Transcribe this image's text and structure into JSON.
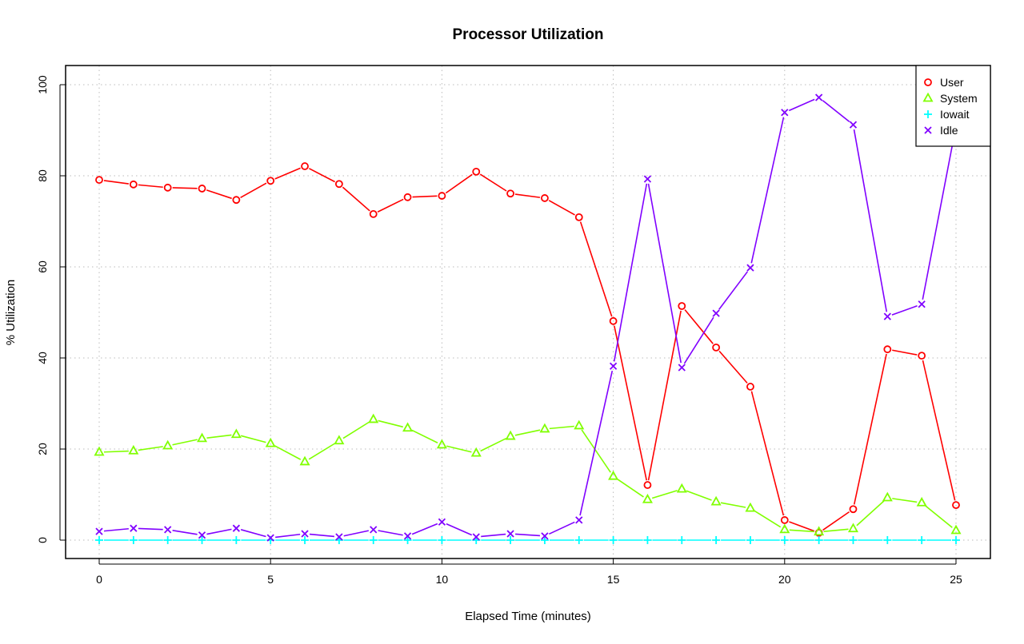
{
  "chart_data": {
    "type": "line",
    "title": "Processor Utilization",
    "xlabel": "Elapsed Time (minutes)",
    "ylabel": "% Utilization",
    "xlim": [
      -1,
      26
    ],
    "ylim": [
      -4,
      104
    ],
    "xticks": [
      "0",
      "5",
      "10",
      "15",
      "20",
      "25"
    ],
    "yticks": [
      "0",
      "20",
      "40",
      "60",
      "80",
      "100"
    ],
    "grid": true,
    "legend_position": "top-right",
    "x": [
      0,
      1,
      2,
      3,
      4,
      5,
      6,
      7,
      8,
      9,
      10,
      11,
      12,
      13,
      14,
      15,
      16,
      17,
      18,
      19,
      20,
      21,
      22,
      23,
      24,
      25
    ],
    "series": [
      {
        "name": "User",
        "color": "#FF0000",
        "marker": "circle",
        "values": [
          79.1,
          78.1,
          77.4,
          77.2,
          74.7,
          78.9,
          82.1,
          78.2,
          71.6,
          75.3,
          75.6,
          80.9,
          76.1,
          75.1,
          70.9,
          48.1,
          12.1,
          51.4,
          42.3,
          33.7,
          4.4,
          1.6,
          6.8,
          41.9,
          40.5,
          7.7
        ]
      },
      {
        "name": "System",
        "color": "#80FF00",
        "marker": "triangle",
        "values": [
          19.3,
          19.6,
          20.7,
          22.3,
          23.2,
          21.2,
          17.2,
          21.8,
          26.5,
          24.6,
          20.9,
          19.1,
          22.8,
          24.4,
          25.1,
          14.0,
          8.9,
          11.2,
          8.4,
          7.0,
          2.3,
          1.8,
          2.5,
          9.3,
          8.2,
          2.1
        ]
      },
      {
        "name": "Iowait",
        "color": "#00FFFF",
        "marker": "plus",
        "values": [
          0,
          0,
          0,
          0,
          0,
          0,
          0,
          0,
          0,
          0,
          0,
          0,
          0,
          0,
          0,
          0,
          0,
          0,
          0,
          0,
          0,
          0,
          0,
          0,
          0,
          0
        ]
      },
      {
        "name": "Idle",
        "color": "#8000FF",
        "marker": "cross",
        "values": [
          1.9,
          2.6,
          2.3,
          1.1,
          2.6,
          0.5,
          1.4,
          0.7,
          2.3,
          0.9,
          4.0,
          0.7,
          1.4,
          0.9,
          4.4,
          38.2,
          79.3,
          37.9,
          49.8,
          59.8,
          93.9,
          97.2,
          91.2,
          49.1,
          51.8,
          90.9
        ]
      }
    ]
  }
}
